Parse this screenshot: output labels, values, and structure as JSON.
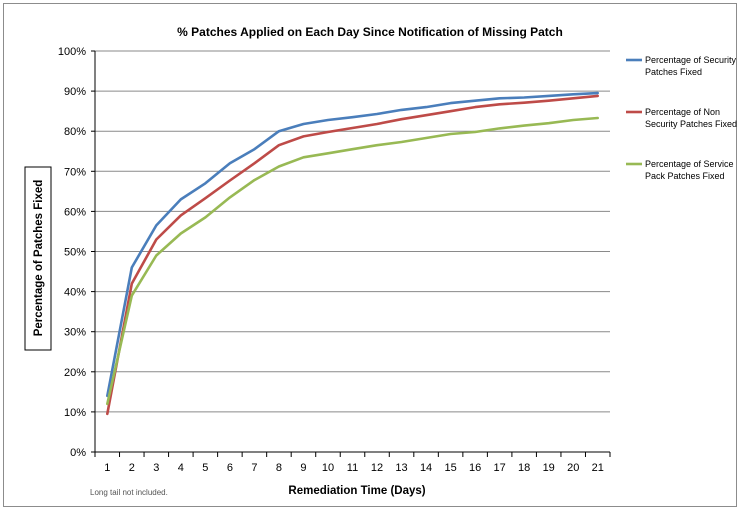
{
  "chart_data": {
    "type": "line",
    "title": "% Patches Applied on Each Day Since Notification of Missing Patch",
    "xlabel": "Remediation Time (Days)",
    "ylabel": "Percentage of Patches Fixed",
    "x": [
      1,
      2,
      3,
      4,
      5,
      6,
      7,
      8,
      9,
      10,
      11,
      12,
      13,
      14,
      15,
      16,
      17,
      18,
      19,
      20,
      21
    ],
    "ylim": [
      0,
      100
    ],
    "yticks": [
      0,
      10,
      20,
      30,
      40,
      50,
      60,
      70,
      80,
      90,
      100
    ],
    "ytick_labels": [
      "0%",
      "10%",
      "20%",
      "30%",
      "40%",
      "50%",
      "60%",
      "70%",
      "80%",
      "90%",
      "100%"
    ],
    "grid": true,
    "legend_position": "right",
    "series": [
      {
        "name": "Percentage of Security Patches Fixed",
        "legend_lines": [
          "Percentage of Security",
          "Patches Fixed"
        ],
        "color": "#4a7ebb",
        "values": [
          14,
          46,
          56.5,
          63,
          67,
          72,
          75.5,
          80,
          81.8,
          82.8,
          83.5,
          84.3,
          85.3,
          86,
          87,
          87.6,
          88.2,
          88.4,
          88.8,
          89.2,
          89.5
        ]
      },
      {
        "name": "Percentage of Non Security Patches Fixed",
        "legend_lines": [
          "Percentage of Non",
          "Security Patches Fixed"
        ],
        "color": "#be4b48",
        "values": [
          9.5,
          42,
          53,
          59,
          63.3,
          67.7,
          72,
          76.5,
          78.7,
          79.8,
          80.8,
          81.8,
          83,
          84,
          85,
          86,
          86.7,
          87.1,
          87.6,
          88.2,
          88.8
        ]
      },
      {
        "name": "Percentage of Service Pack Patches Fixed",
        "legend_lines": [
          "Percentage of Service",
          "Pack Patches Fixed"
        ],
        "color": "#98b954",
        "values": [
          12,
          39,
          49,
          54.5,
          58.5,
          63.5,
          67.8,
          71.2,
          73.5,
          74.5,
          75.5,
          76.5,
          77.3,
          78.3,
          79.3,
          79.8,
          80.7,
          81.4,
          82,
          82.8,
          83.3
        ]
      }
    ],
    "footnote": "Long tail not included."
  }
}
